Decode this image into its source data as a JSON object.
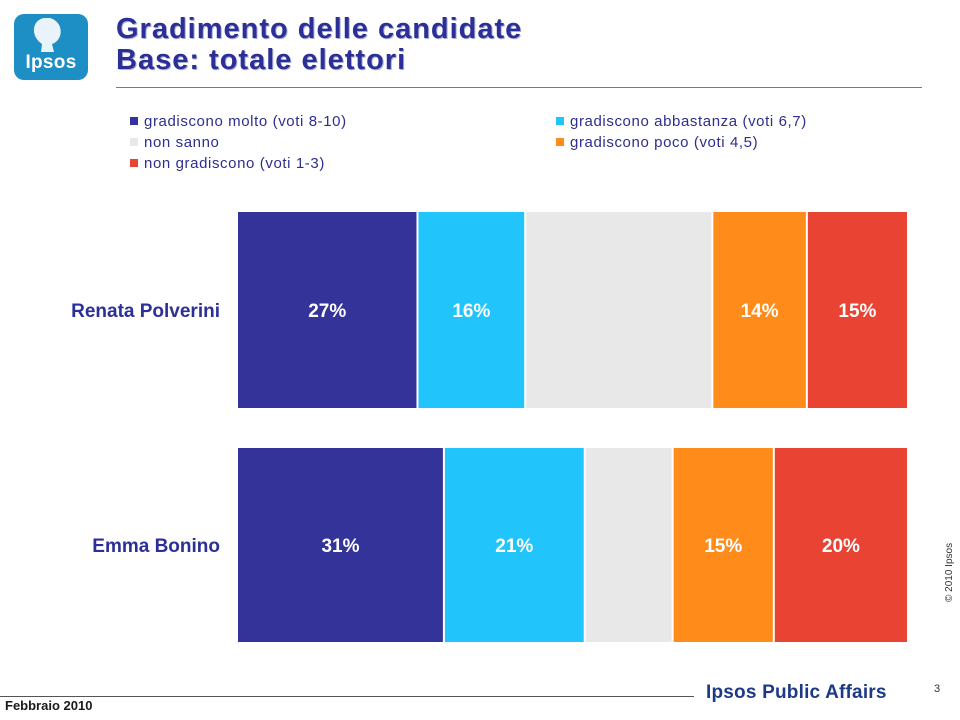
{
  "header": {
    "logo_text": "Ipsos",
    "title_line1": "Gradimento delle candidate",
    "title_line2": "Base: totale elettori"
  },
  "chart_data": {
    "type": "bar",
    "orientation": "horizontal",
    "stacked": true,
    "categories": [
      "Renata Polverini",
      "Emma Bonino"
    ],
    "series": [
      {
        "name": "gradiscono molto (voti 8-10)",
        "color": "#333399",
        "values": [
          27,
          31
        ],
        "labels": [
          "27%",
          "31%"
        ]
      },
      {
        "name": "gradiscono abbastanza (voti 6,7)",
        "color": "#21c4fb",
        "values": [
          16,
          21
        ],
        "labels": [
          "16%",
          "21%"
        ]
      },
      {
        "name": "non sanno",
        "color": "#e8e8e8",
        "values": [
          28,
          13
        ],
        "labels": [
          "",
          ""
        ]
      },
      {
        "name": "gradiscono poco (voti 4,5)",
        "color": "#ff8c1a",
        "values": [
          14,
          15
        ],
        "labels": [
          "14%",
          "15%"
        ]
      },
      {
        "name": "non gradiscono (voti 1-3)",
        "color": "#e84333",
        "values": [
          15,
          20
        ],
        "labels": [
          "15%",
          "20%"
        ]
      }
    ],
    "legend_position": "top",
    "grid": false,
    "xlim": [
      0,
      100
    ]
  },
  "footer": {
    "copyright": "© 2010 Ipsos",
    "page_number": "3",
    "date": "Febbraio  2010",
    "brand": "Ipsos Public Affairs"
  }
}
